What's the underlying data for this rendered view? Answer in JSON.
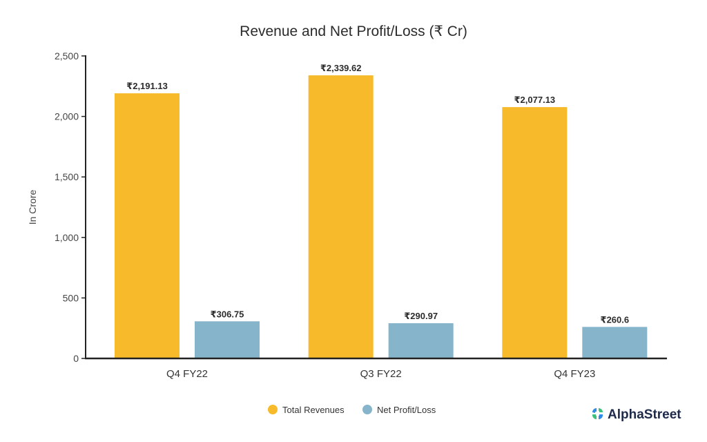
{
  "chart_data": {
    "type": "bar",
    "title": "Revenue and Net Profit/Loss (₹ Cr)",
    "xlabel": "",
    "ylabel": "In Crore",
    "ylim": [
      0,
      2500
    ],
    "yticks": [
      0,
      500,
      1000,
      1500,
      2000,
      2500
    ],
    "ytick_labels": [
      "0",
      "500",
      "1,000",
      "1,500",
      "2,000",
      "2,500"
    ],
    "categories": [
      "Q4 FY22",
      "Q3 FY22",
      "Q4 FY23"
    ],
    "series": [
      {
        "name": "Total Revenues",
        "color": "#F6BA2A",
        "values": [
          2191.13,
          2339.62,
          2077.13
        ],
        "labels": [
          "₹2,191.13",
          "₹2,339.62",
          "₹2,077.13"
        ]
      },
      {
        "name": "Net Profit/Loss",
        "color": "#86B4CB",
        "values": [
          306.75,
          290.97,
          260.6
        ],
        "labels": [
          "₹306.75",
          "₹290.97",
          "₹260.6"
        ]
      }
    ],
    "grid": false,
    "legend": "bottom-center"
  },
  "brand": {
    "name": "AlphaStreet",
    "logo_colors": [
      "#2E8BE6",
      "#3CC07A"
    ]
  }
}
